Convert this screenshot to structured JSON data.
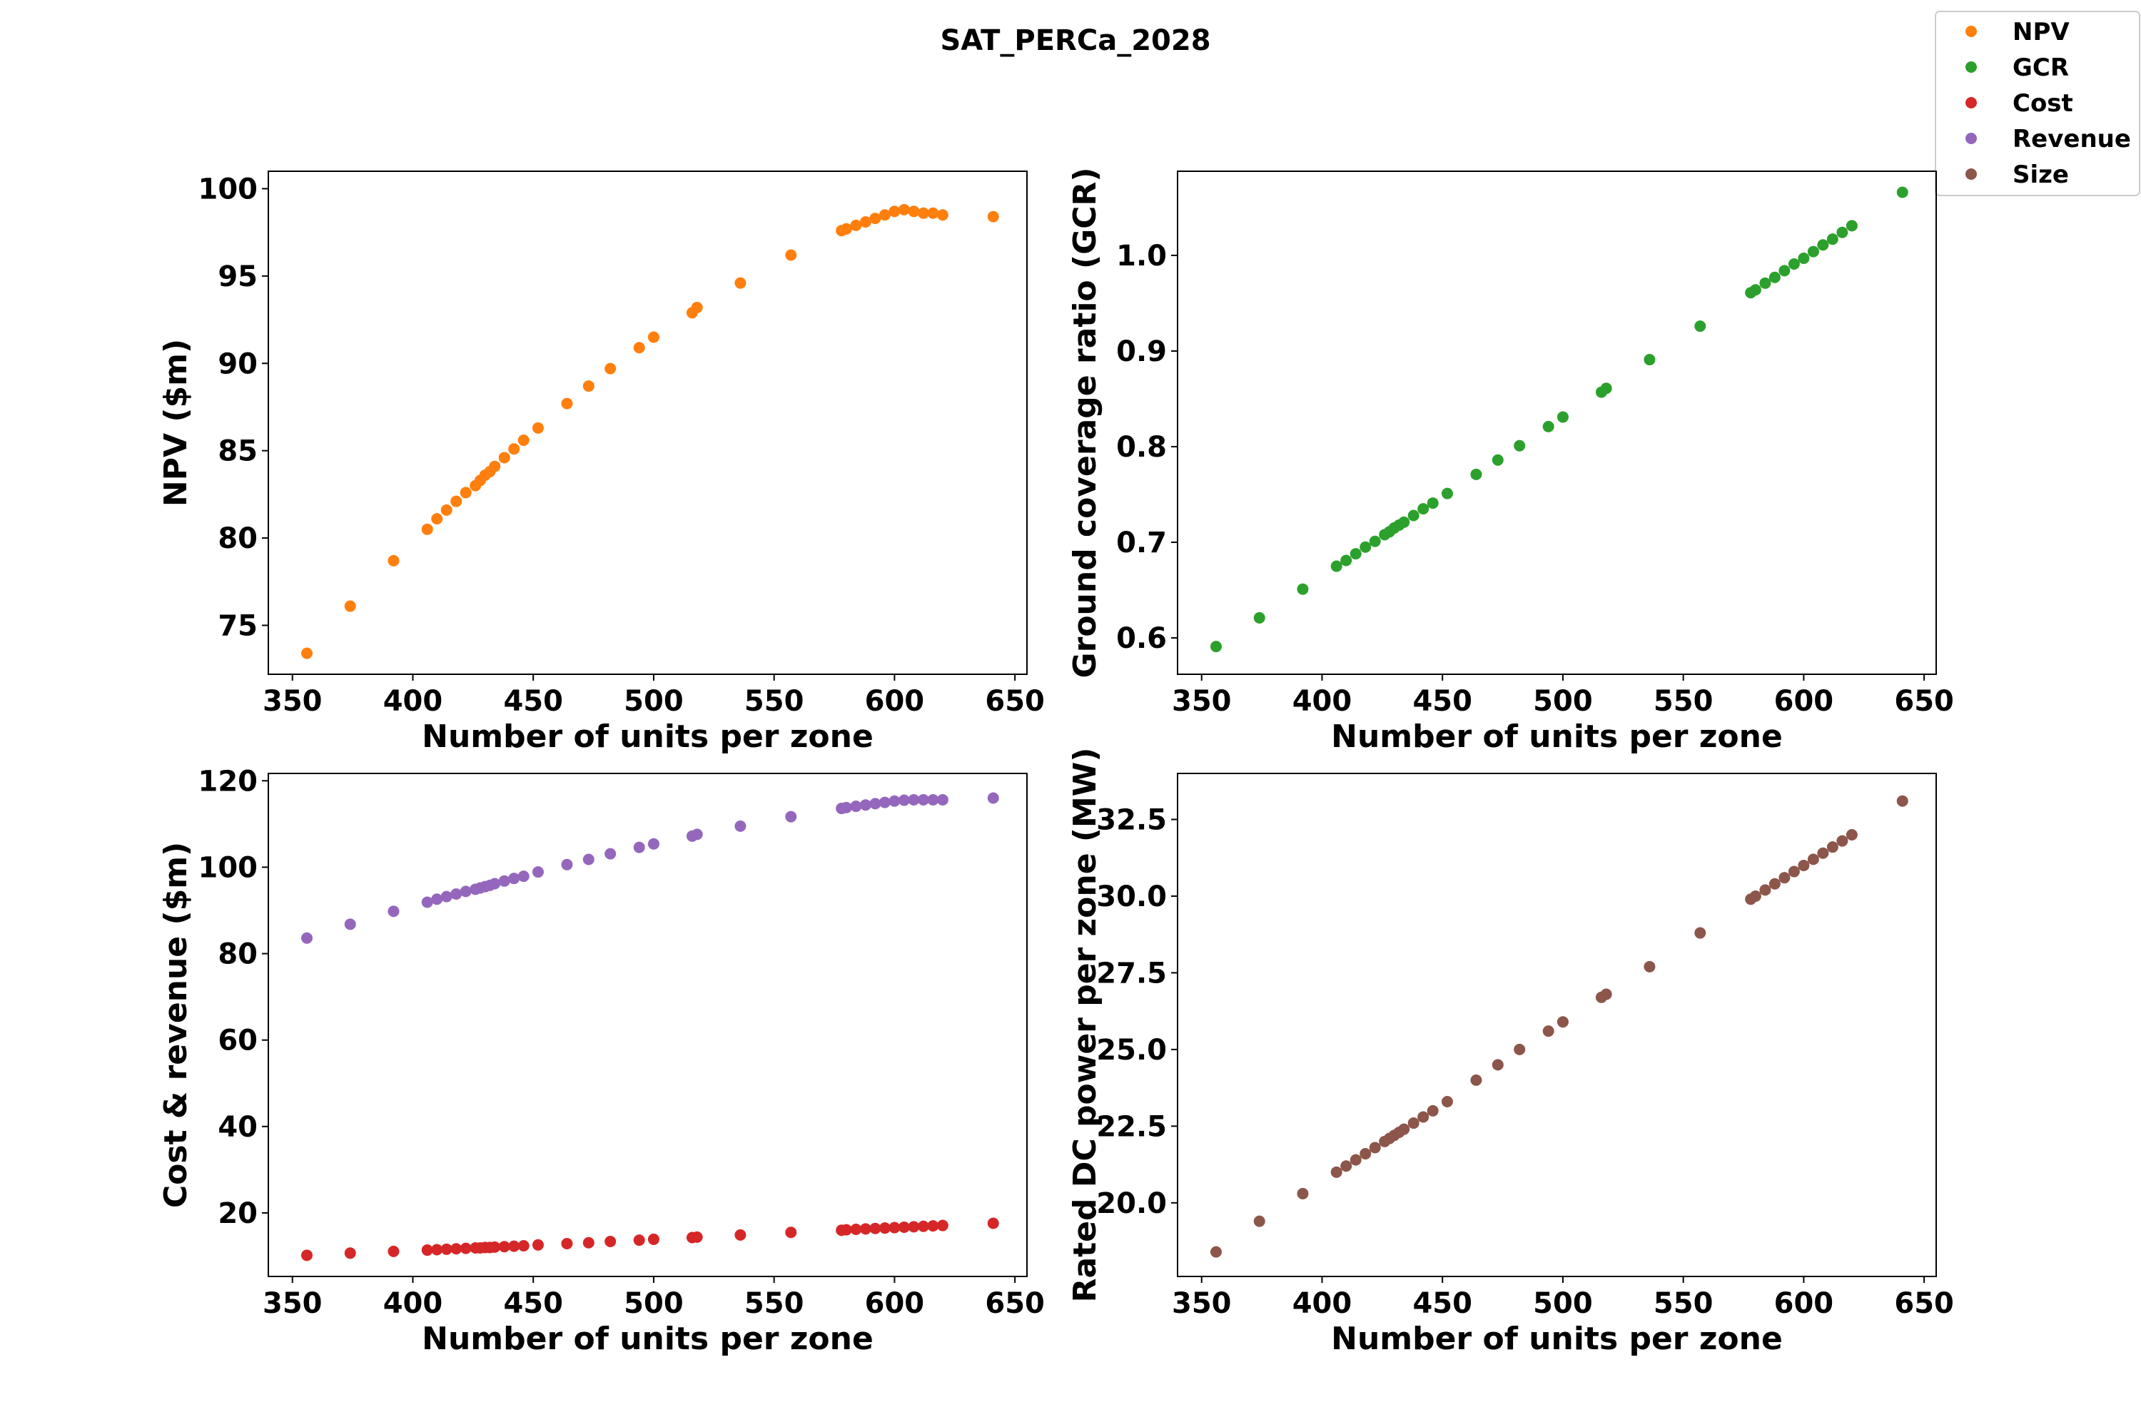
{
  "figure": {
    "title": "SAT_PERCa_2028"
  },
  "legend": {
    "placement": "top-right",
    "entries": [
      {
        "label": "NPV",
        "color": "#ff7f0e"
      },
      {
        "label": "GCR",
        "color": "#2ca02c"
      },
      {
        "label": "Cost",
        "color": "#d62728"
      },
      {
        "label": "Revenue",
        "color": "#9467bd"
      },
      {
        "label": "Size",
        "color": "#8c564b"
      }
    ]
  },
  "chart_data": [
    {
      "type": "scatter",
      "xlabel": "Number of units per zone",
      "ylabel": "NPV ($m)",
      "xlim": [
        340,
        655
      ],
      "ylim": [
        72.2,
        101
      ],
      "xticks": [
        350,
        400,
        450,
        500,
        550,
        600,
        650
      ],
      "yticks": [
        75,
        80,
        85,
        90,
        95,
        100
      ],
      "xtick_labels": [
        "350",
        "400",
        "450",
        "500",
        "550",
        "600",
        "650"
      ],
      "ytick_labels": [
        "75",
        "80",
        "85",
        "90",
        "95",
        "100"
      ],
      "series": [
        {
          "name": "NPV",
          "color": "#ff7f0e",
          "x": [
            356,
            374,
            392,
            406,
            410,
            414,
            418,
            422,
            426,
            428,
            430,
            432,
            434,
            438,
            442,
            446,
            452,
            464,
            473,
            482,
            494,
            500,
            516,
            518,
            536,
            557,
            578,
            580,
            584,
            588,
            592,
            596,
            600,
            604,
            608,
            612,
            616,
            620,
            641
          ],
          "y": [
            73.4,
            76.1,
            78.7,
            80.5,
            81.1,
            81.6,
            82.1,
            82.6,
            83.0,
            83.3,
            83.6,
            83.8,
            84.1,
            84.6,
            85.1,
            85.6,
            86.3,
            87.7,
            88.7,
            89.7,
            90.9,
            91.5,
            92.9,
            93.2,
            94.6,
            96.2,
            97.6,
            97.7,
            97.9,
            98.1,
            98.3,
            98.5,
            98.7,
            98.8,
            98.7,
            98.6,
            98.6,
            98.5,
            98.4
          ]
        }
      ]
    },
    {
      "type": "scatter",
      "xlabel": "Number of units per zone",
      "ylabel": "Ground coverage ratio (GCR)",
      "xlim": [
        340,
        655
      ],
      "ylim": [
        0.562,
        1.088
      ],
      "xticks": [
        350,
        400,
        450,
        500,
        550,
        600,
        650
      ],
      "yticks": [
        0.6,
        0.7,
        0.8,
        0.9,
        1.0
      ],
      "xtick_labels": [
        "350",
        "400",
        "450",
        "500",
        "550",
        "600",
        "650"
      ],
      "ytick_labels": [
        "0.6",
        "0.7",
        "0.8",
        "0.9",
        "1.0"
      ],
      "series": [
        {
          "name": "GCR",
          "color": "#2ca02c",
          "x": [
            356,
            374,
            392,
            406,
            410,
            414,
            418,
            422,
            426,
            428,
            430,
            432,
            434,
            438,
            442,
            446,
            452,
            464,
            473,
            482,
            494,
            500,
            516,
            518,
            536,
            557,
            578,
            580,
            584,
            588,
            592,
            596,
            600,
            604,
            608,
            612,
            616,
            620,
            641
          ],
          "y": [
            0.591,
            0.621,
            0.651,
            0.675,
            0.681,
            0.688,
            0.695,
            0.701,
            0.708,
            0.711,
            0.715,
            0.718,
            0.721,
            0.728,
            0.735,
            0.741,
            0.751,
            0.771,
            0.786,
            0.801,
            0.821,
            0.831,
            0.857,
            0.861,
            0.891,
            0.926,
            0.961,
            0.964,
            0.971,
            0.977,
            0.984,
            0.991,
            0.997,
            1.004,
            1.011,
            1.017,
            1.024,
            1.031,
            1.066
          ]
        }
      ]
    },
    {
      "type": "scatter",
      "xlabel": "Number of units per zone",
      "ylabel": "Cost & revenue ($m)",
      "xlim": [
        340,
        655
      ],
      "ylim": [
        5.3,
        121.7
      ],
      "xticks": [
        350,
        400,
        450,
        500,
        550,
        600,
        650
      ],
      "yticks": [
        20,
        40,
        60,
        80,
        100,
        120
      ],
      "xtick_labels": [
        "350",
        "400",
        "450",
        "500",
        "550",
        "600",
        "650"
      ],
      "ytick_labels": [
        "20",
        "40",
        "60",
        "80",
        "100",
        "120"
      ],
      "series": [
        {
          "name": "Cost",
          "color": "#d62728",
          "x": [
            356,
            374,
            392,
            406,
            410,
            414,
            418,
            422,
            426,
            428,
            430,
            432,
            434,
            438,
            442,
            446,
            452,
            464,
            473,
            482,
            494,
            500,
            516,
            518,
            536,
            557,
            578,
            580,
            584,
            588,
            592,
            596,
            600,
            604,
            608,
            612,
            616,
            620,
            641
          ],
          "y": [
            10.2,
            10.7,
            11.1,
            11.4,
            11.5,
            11.6,
            11.7,
            11.8,
            11.9,
            11.9,
            12.0,
            12.0,
            12.1,
            12.2,
            12.3,
            12.4,
            12.6,
            12.9,
            13.1,
            13.4,
            13.7,
            13.9,
            14.3,
            14.4,
            14.9,
            15.5,
            16.0,
            16.1,
            16.2,
            16.3,
            16.4,
            16.5,
            16.6,
            16.7,
            16.8,
            16.9,
            17.0,
            17.1,
            17.6
          ]
        },
        {
          "name": "Revenue",
          "color": "#9467bd",
          "x": [
            356,
            374,
            392,
            406,
            410,
            414,
            418,
            422,
            426,
            428,
            430,
            432,
            434,
            438,
            442,
            446,
            452,
            464,
            473,
            482,
            494,
            500,
            516,
            518,
            536,
            557,
            578,
            580,
            584,
            588,
            592,
            596,
            600,
            604,
            608,
            612,
            616,
            620,
            641
          ],
          "y": [
            83.6,
            86.8,
            89.8,
            91.9,
            92.6,
            93.2,
            93.8,
            94.4,
            94.9,
            95.2,
            95.5,
            95.8,
            96.2,
            96.8,
            97.4,
            97.9,
            98.9,
            100.6,
            101.8,
            103.1,
            104.6,
            105.4,
            107.2,
            107.6,
            109.5,
            111.7,
            113.6,
            113.8,
            114.1,
            114.4,
            114.7,
            115.0,
            115.3,
            115.5,
            115.6,
            115.6,
            115.6,
            115.6,
            116.0
          ]
        }
      ]
    },
    {
      "type": "scatter",
      "xlabel": "Number of units per zone",
      "ylabel": "Rated DC power per zone (MW)",
      "xlim": [
        340,
        655
      ],
      "ylim": [
        17.6,
        34.0
      ],
      "xticks": [
        350,
        400,
        450,
        500,
        550,
        600,
        650
      ],
      "yticks": [
        20.0,
        22.5,
        25.0,
        27.5,
        30.0,
        32.5
      ],
      "xtick_labels": [
        "350",
        "400",
        "450",
        "500",
        "550",
        "600",
        "650"
      ],
      "ytick_labels": [
        "20.0",
        "22.5",
        "25.0",
        "27.5",
        "30.0",
        "32.5"
      ],
      "series": [
        {
          "name": "Size",
          "color": "#8c564b",
          "x": [
            356,
            374,
            392,
            406,
            410,
            414,
            418,
            422,
            426,
            428,
            430,
            432,
            434,
            438,
            442,
            446,
            452,
            464,
            473,
            482,
            494,
            500,
            516,
            518,
            536,
            557,
            578,
            580,
            584,
            588,
            592,
            596,
            600,
            604,
            608,
            612,
            616,
            620,
            641
          ],
          "y": [
            18.4,
            19.4,
            20.3,
            21.0,
            21.2,
            21.4,
            21.6,
            21.8,
            22.0,
            22.1,
            22.2,
            22.3,
            22.4,
            22.6,
            22.8,
            23.0,
            23.3,
            24.0,
            24.5,
            25.0,
            25.6,
            25.9,
            26.7,
            26.8,
            27.7,
            28.8,
            29.9,
            30.0,
            30.2,
            30.4,
            30.6,
            30.8,
            31.0,
            31.2,
            31.4,
            31.6,
            31.8,
            32.0,
            33.1
          ]
        }
      ]
    }
  ]
}
